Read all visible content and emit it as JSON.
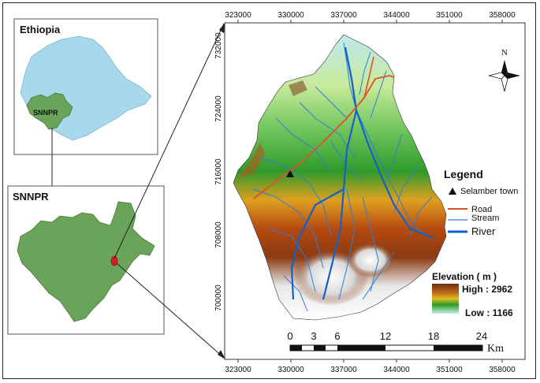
{
  "insets": {
    "ethiopia_title": "Ethiopia",
    "snnpr_label_small": "SNNPR",
    "snnpr_title": "SNNPR"
  },
  "grid": {
    "x_ticks": [
      "323000",
      "330000",
      "337000",
      "344000",
      "351000",
      "358000"
    ],
    "y_ticks": [
      "732000",
      "724000",
      "716000",
      "708000",
      "700000"
    ]
  },
  "compass": {
    "north_label": "N"
  },
  "legend": {
    "title": "Legend",
    "town_label": "Selamber town",
    "road_label": "Road",
    "stream_label": "Stream",
    "river_label": "River",
    "road_color": "#e0502a",
    "stream_color": "#2b7fd6",
    "river_color": "#1560c8"
  },
  "elevation": {
    "title": "Elevation ( m )",
    "high_label": "High : 2962",
    "low_label": "Low : 1166"
  },
  "scale_bar": {
    "labels": [
      "0",
      "3",
      "6",
      "12",
      "18",
      "24"
    ],
    "unit": "Km"
  }
}
